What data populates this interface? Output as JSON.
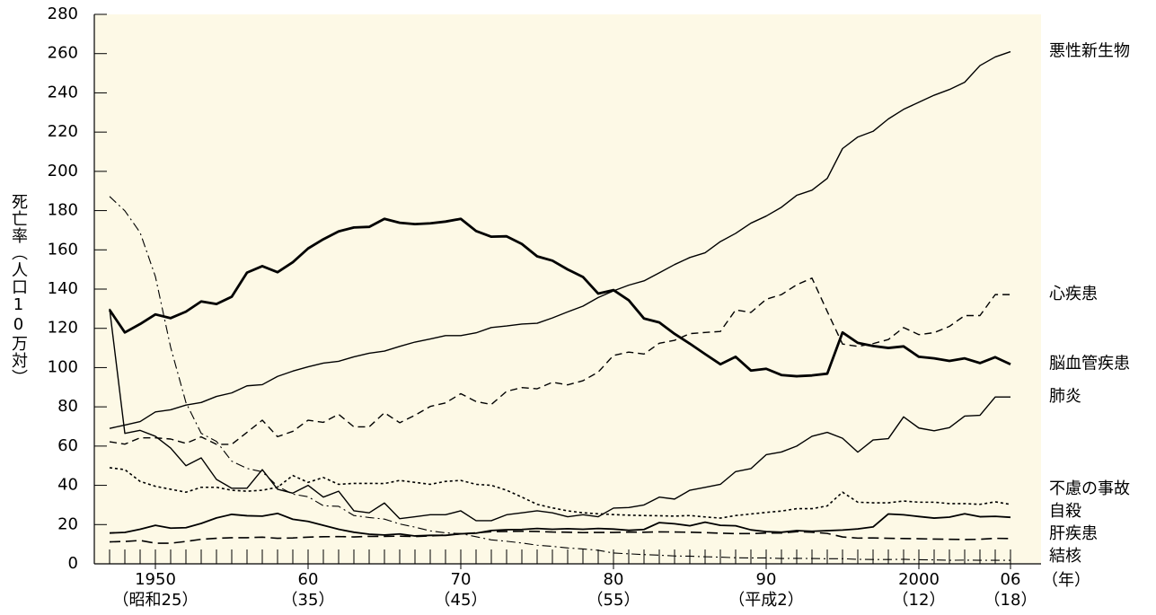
{
  "chart_data": {
    "type": "line",
    "y_label": "死亡率（人口10万対）",
    "x_unit": "（年）",
    "x": [
      1947,
      1948,
      1949,
      1950,
      1951,
      1952,
      1953,
      1954,
      1955,
      1956,
      1957,
      1958,
      1959,
      1960,
      1961,
      1962,
      1963,
      1964,
      1965,
      1966,
      1967,
      1968,
      1969,
      1970,
      1971,
      1972,
      1973,
      1974,
      1975,
      1976,
      1977,
      1978,
      1979,
      1980,
      1981,
      1982,
      1983,
      1984,
      1985,
      1986,
      1987,
      1988,
      1989,
      1990,
      1991,
      1992,
      1993,
      1994,
      1995,
      1996,
      1997,
      1998,
      1999,
      2000,
      2001,
      2002,
      2003,
      2004,
      2005,
      2006
    ],
    "xlim": [
      1946,
      2008
    ],
    "xticks": [
      {
        "value": 1950,
        "label": "1950",
        "era": "（昭和25）"
      },
      {
        "value": 1960,
        "label": "60",
        "era": "（35）"
      },
      {
        "value": 1970,
        "label": "70",
        "era": "（45）"
      },
      {
        "value": 1980,
        "label": "80",
        "era": "（55）"
      },
      {
        "value": 1990,
        "label": "90",
        "era": "（平成2）"
      },
      {
        "value": 2000,
        "label": "2000",
        "era": "（12）"
      },
      {
        "value": 2006,
        "label": "06",
        "era": "（18）"
      }
    ],
    "ylim": [
      0,
      280
    ],
    "yticks": [
      0,
      20,
      40,
      60,
      80,
      100,
      120,
      140,
      160,
      180,
      200,
      220,
      240,
      260,
      280
    ],
    "background": "#fdf9e6",
    "series": [
      {
        "name": "悪性新生物",
        "color": "#000000",
        "width": 1.4,
        "dash": "none",
        "values": [
          69.0,
          70.7,
          72.5,
          77.4,
          78.5,
          80.9,
          82.2,
          85.3,
          87.1,
          90.7,
          91.3,
          95.5,
          98.2,
          100.4,
          102.3,
          103.2,
          105.5,
          107.3,
          108.4,
          110.8,
          113.0,
          114.6,
          116.3,
          116.3,
          117.7,
          120.4,
          121.2,
          122.2,
          122.6,
          125.3,
          128.4,
          131.3,
          135.7,
          139.1,
          142.0,
          144.2,
          148.3,
          152.5,
          156.1,
          158.5,
          164.2,
          168.4,
          173.6,
          177.2,
          181.7,
          187.8,
          190.4,
          196.4,
          211.6,
          217.5,
          220.4,
          226.7,
          231.6,
          235.2,
          238.8,
          241.7,
          245.4,
          253.9,
          258.3,
          261.0
        ]
      },
      {
        "name": "心疾患",
        "color": "#000000",
        "width": 1.4,
        "dash": "8 5",
        "values": [
          62.2,
          61.0,
          64.2,
          64.2,
          63.6,
          61.4,
          64.7,
          60.9,
          60.9,
          67.0,
          73.2,
          64.8,
          67.5,
          73.2,
          72.1,
          76.2,
          69.8,
          69.8,
          77.0,
          71.9,
          75.7,
          80.2,
          82.0,
          86.7,
          82.7,
          81.2,
          87.9,
          89.8,
          89.2,
          92.5,
          91.2,
          93.3,
          97.7,
          106.2,
          107.9,
          106.9,
          112.4,
          113.9,
          117.3,
          117.9,
          118.4,
          129.4,
          128.1,
          134.8,
          137.2,
          142.2,
          145.6,
          128.6,
          112.0,
          110.8,
          112.2,
          114.3,
          120.4,
          116.8,
          117.8,
          121.0,
          126.5,
          126.5,
          137.2,
          137.2
        ]
      },
      {
        "name": "脳血管疾患",
        "color": "#000000",
        "width": 2.8,
        "dash": "none",
        "values": [
          129.4,
          117.9,
          122.2,
          127.1,
          125.2,
          128.5,
          133.7,
          132.4,
          136.1,
          148.4,
          151.7,
          148.6,
          153.7,
          160.7,
          165.4,
          169.4,
          171.4,
          171.7,
          175.8,
          173.8,
          173.1,
          173.5,
          174.4,
          175.8,
          169.6,
          166.7,
          166.9,
          163.0,
          156.7,
          154.5,
          150.0,
          146.2,
          137.7,
          139.5,
          134.3,
          125.0,
          123.0,
          117.2,
          112.2,
          106.9,
          101.7,
          105.5,
          98.5,
          99.4,
          96.2,
          95.6,
          96.0,
          96.9,
          117.9,
          112.6,
          111.0,
          110.0,
          110.8,
          105.5,
          104.7,
          103.4,
          104.7,
          102.3,
          105.3,
          101.7
        ]
      },
      {
        "name": "肺炎",
        "color": "#000000",
        "width": 1.4,
        "dash": "none",
        "values": [
          130.0,
          66.5,
          68.0,
          65.0,
          59.0,
          50.0,
          54.0,
          43.0,
          38.5,
          38.5,
          48.0,
          38.0,
          36.0,
          40.0,
          34.0,
          37.0,
          27.0,
          26.0,
          31.0,
          23.0,
          24.0,
          25.0,
          25.0,
          27.0,
          22.0,
          22.0,
          25.0,
          26.0,
          27.0,
          26.0,
          24.0,
          25.0,
          24.0,
          28.4,
          28.7,
          30.0,
          34.0,
          33.0,
          37.5,
          39.0,
          40.5,
          47.0,
          48.5,
          55.6,
          57.0,
          60.0,
          65.0,
          67.0,
          64.0,
          56.9,
          63.1,
          63.8,
          74.9,
          69.2,
          67.8,
          69.4,
          75.3,
          75.7,
          85.0,
          85.0
        ]
      },
      {
        "name": "不慮の事故",
        "color": "#000000",
        "width": 1.6,
        "dash": "3 3",
        "values": [
          49.0,
          48.0,
          42.0,
          39.5,
          38.0,
          36.5,
          39.0,
          39.0,
          37.5,
          37.0,
          37.5,
          39.0,
          45.0,
          41.5,
          44.0,
          40.5,
          41.0,
          41.0,
          40.9,
          42.5,
          41.5,
          40.5,
          42.0,
          42.5,
          40.5,
          40.0,
          37.5,
          34.0,
          30.3,
          28.5,
          27.0,
          26.0,
          25.5,
          25.1,
          24.8,
          24.6,
          24.5,
          24.3,
          24.6,
          23.9,
          23.3,
          24.6,
          25.4,
          26.2,
          26.9,
          28.1,
          28.1,
          29.5,
          36.5,
          31.4,
          31.1,
          31.1,
          32.0,
          31.4,
          31.4,
          30.7,
          30.7,
          30.3,
          31.6,
          30.3
        ]
      },
      {
        "name": "自殺",
        "color": "#000000",
        "width": 1.8,
        "dash": "none",
        "values": [
          15.7,
          16.0,
          17.6,
          19.6,
          18.2,
          18.4,
          20.6,
          23.4,
          25.2,
          24.5,
          24.3,
          25.7,
          22.7,
          21.6,
          19.6,
          17.6,
          16.1,
          15.1,
          14.7,
          15.2,
          14.2,
          14.5,
          14.5,
          15.3,
          15.6,
          17.0,
          17.4,
          17.5,
          18.0,
          17.6,
          17.9,
          17.6,
          18.0,
          17.7,
          17.1,
          17.5,
          21.0,
          20.4,
          19.4,
          21.2,
          19.6,
          19.4,
          17.3,
          16.4,
          16.1,
          16.9,
          16.6,
          16.9,
          17.2,
          17.8,
          18.8,
          25.4,
          25.0,
          24.1,
          23.3,
          23.8,
          25.5,
          24.0,
          24.2,
          23.7
        ]
      },
      {
        "name": "肝疾患",
        "color": "#000000",
        "width": 1.6,
        "dash": "12 6",
        "values": [
          11.2,
          11.4,
          11.9,
          10.5,
          10.5,
          11.4,
          12.5,
          13.0,
          13.3,
          13.3,
          13.6,
          13.0,
          13.2,
          13.6,
          13.8,
          13.9,
          13.7,
          14.0,
          14.0,
          14.1,
          13.9,
          14.2,
          14.7,
          15.3,
          15.8,
          16.4,
          16.5,
          16.6,
          16.5,
          16.2,
          16.1,
          15.9,
          16.0,
          16.0,
          16.2,
          16.1,
          16.3,
          16.2,
          16.1,
          15.9,
          15.6,
          15.4,
          15.4,
          15.7,
          15.7,
          16.4,
          16.1,
          15.5,
          13.7,
          13.1,
          13.2,
          13.0,
          12.9,
          12.8,
          12.6,
          12.5,
          12.4,
          12.5,
          13.0,
          12.9
        ]
      },
      {
        "name": "結核",
        "color": "#000000",
        "width": 1.1,
        "dash": "10 4 2 4",
        "values": [
          187.2,
          179.9,
          168.8,
          146.4,
          110.3,
          82.2,
          66.5,
          62.4,
          52.3,
          48.6,
          46.9,
          39.6,
          35.5,
          34.2,
          29.6,
          29.3,
          24.6,
          23.6,
          22.8,
          20.3,
          18.7,
          16.8,
          15.8,
          15.4,
          13.8,
          12.2,
          11.5,
          10.6,
          9.5,
          8.9,
          8.1,
          7.6,
          6.9,
          5.5,
          5.1,
          4.7,
          4.4,
          4.0,
          3.9,
          3.6,
          3.4,
          3.1,
          3.0,
          3.0,
          2.7,
          2.8,
          2.7,
          2.6,
          2.6,
          2.3,
          2.2,
          2.2,
          2.3,
          2.1,
          2.0,
          1.8,
          1.9,
          1.8,
          1.8,
          1.8
        ]
      }
    ]
  }
}
